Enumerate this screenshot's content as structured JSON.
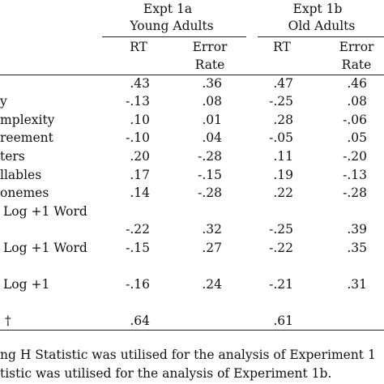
{
  "table": {
    "expt1a": {
      "title": "Expt 1a",
      "subtitle": "Young Adults"
    },
    "expt1b": {
      "title": "Expt 1b",
      "subtitle": "Old Adults"
    },
    "col_rt": "RT",
    "col_error_line1": "Error",
    "col_error_line2": "Rate",
    "rows": [
      {
        "label": "",
        "a_rt": ".43",
        "a_err": ".36",
        "b_rt": ".47",
        "b_err": ".46"
      },
      {
        "label": "y",
        "a_rt": "-.13",
        "a_err": ".08",
        "b_rt": "-.25",
        "b_err": ".08"
      },
      {
        "label": "mplexity",
        "a_rt": ".10",
        "a_err": ".01",
        "b_rt": ".28",
        "b_err": "-.06"
      },
      {
        "label": "reement",
        "a_rt": "-.10",
        "a_err": ".04",
        "b_rt": "-.05",
        "b_err": ".05"
      },
      {
        "label": "ters",
        "a_rt": ".20",
        "a_err": "-.28",
        "b_rt": ".11",
        "b_err": "-.20"
      },
      {
        "label": "llables",
        "a_rt": ".17",
        "a_err": "-.15",
        "b_rt": ".19",
        "b_err": "-.13"
      },
      {
        "label": "onemes",
        "a_rt": ".14",
        "a_err": "-.28",
        "b_rt": ".22",
        "b_err": "-.28"
      },
      {
        "label": "Log +1 Word",
        "a_rt": "",
        "a_err": "",
        "b_rt": "",
        "b_err": ""
      },
      {
        "label": "",
        "a_rt": "-.22",
        "a_err": ".32",
        "b_rt": "-.25",
        "b_err": ".39"
      },
      {
        "label": "Log +1 Word",
        "a_rt": "-.15",
        "a_err": ".27",
        "b_rt": "-.22",
        "b_err": ".35"
      },
      {
        "label": "Log +1",
        "a_rt": "-.16",
        "a_err": ".24",
        "b_rt": "-.21",
        "b_err": ".31"
      },
      {
        "label": "†",
        "a_rt": ".64",
        "a_err": "",
        "b_rt": ".61",
        "b_err": ""
      }
    ]
  },
  "footnotes": {
    "line1": "ng H Statistic was utilised for the analysis of Experiment 1",
    "line2": "tistic was utilised for the analysis of Experiment 1b."
  }
}
